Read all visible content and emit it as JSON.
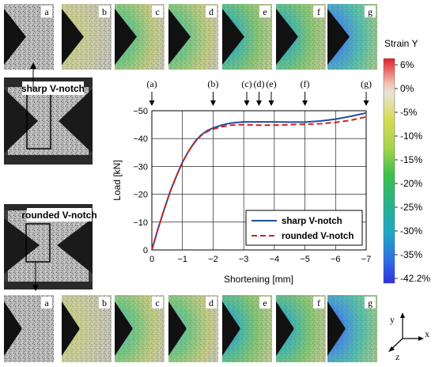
{
  "chart_data": {
    "type": "line",
    "xlabel": "Shortening [mm]",
    "ylabel": "Load [kN]",
    "xlim": [
      0,
      -7
    ],
    "ylim": [
      0,
      -50
    ],
    "x_ticks": [
      "0",
      "−1",
      "−2",
      "−3",
      "−4",
      "−5",
      "−6",
      "−7"
    ],
    "y_ticks": [
      "0",
      "−10",
      "−20",
      "−30",
      "−40",
      "−50"
    ],
    "grid": true,
    "legend_position": "bottom-right",
    "series": [
      {
        "name": "sharp V-notch",
        "color": "#1f4e9c",
        "dash": "solid",
        "x": [
          0,
          -0.2,
          -0.4,
          -0.6,
          -0.8,
          -1.0,
          -1.2,
          -1.4,
          -1.6,
          -1.8,
          -2.0,
          -2.3,
          -2.6,
          -3.0,
          -3.5,
          -4.0,
          -4.5,
          -5.0,
          -5.5,
          -6.0,
          -6.5,
          -7.0
        ],
        "y": [
          0,
          -7.5,
          -14.5,
          -21,
          -26.5,
          -31.5,
          -35.5,
          -38.8,
          -41.2,
          -42.8,
          -43.8,
          -44.9,
          -45.6,
          -46.0,
          -46.0,
          -46.0,
          -45.9,
          -45.9,
          -46.3,
          -47.0,
          -48.0,
          -49.2
        ]
      },
      {
        "name": "rounded V-notch",
        "color": "#d62020",
        "dash": "dashed",
        "x": [
          0,
          -0.2,
          -0.4,
          -0.6,
          -0.8,
          -1.0,
          -1.2,
          -1.4,
          -1.6,
          -1.8,
          -2.0,
          -2.3,
          -2.6,
          -3.0,
          -3.5,
          -4.0,
          -4.5,
          -5.0,
          -5.5,
          -6.0,
          -6.5,
          -7.0
        ],
        "y": [
          0,
          -7.5,
          -14.5,
          -21,
          -26.5,
          -31.5,
          -35.5,
          -38.6,
          -41.0,
          -42.5,
          -43.4,
          -44.3,
          -44.8,
          -45.0,
          -44.8,
          -44.8,
          -45.0,
          -45.1,
          -45.3,
          -45.8,
          -46.6,
          -47.8
        ]
      }
    ],
    "annotations": [
      {
        "label": "(a)",
        "x": 0
      },
      {
        "label": "(b)",
        "x": -2.0
      },
      {
        "label": "(c)",
        "x": -3.1
      },
      {
        "label": "(d)",
        "x": -3.5
      },
      {
        "label": "(e)",
        "x": -3.9
      },
      {
        "label": "(f)",
        "x": -5.0
      },
      {
        "label": "(g)",
        "x": -7.0
      }
    ],
    "colorbar": {
      "title": "Strain Y",
      "labels": [
        "6%",
        "0%",
        "-5%",
        "-10%",
        "-15%",
        "-20%",
        "-25%",
        "-30%",
        "-35%",
        "-42.2%"
      ],
      "colors": [
        "#e0202a",
        "#e8e4d8",
        "#d7dc55",
        "#a4d44a",
        "#3cc04a",
        "#25b48c",
        "#1fa6c8",
        "#2e6ee0",
        "#3030e0"
      ]
    },
    "specimens": [
      {
        "label": "sharp V-notch"
      },
      {
        "label": "rounded V-notch"
      }
    ],
    "frame_letters": [
      "a",
      "b",
      "c",
      "d",
      "e",
      "f",
      "g"
    ],
    "axes_labels": {
      "y": "y",
      "x": "x",
      "z": "z"
    }
  }
}
